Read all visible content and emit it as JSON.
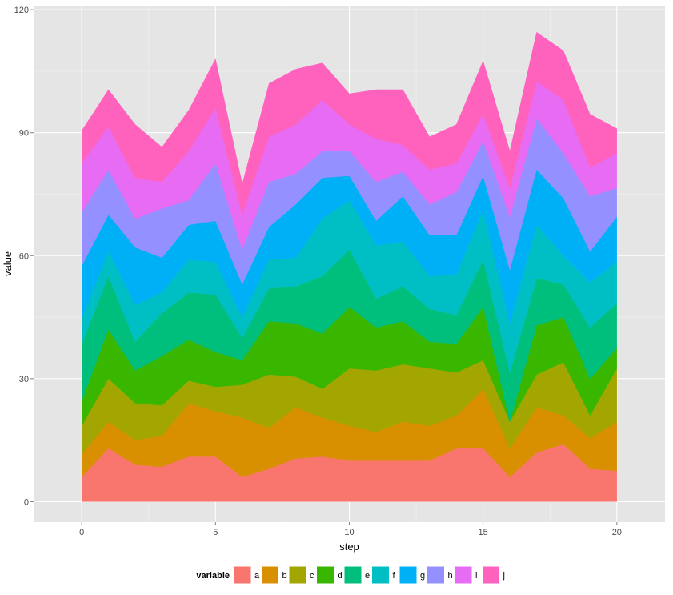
{
  "chart_data": {
    "type": "area",
    "stacked": true,
    "title": "",
    "xlabel": "step",
    "ylabel": "value",
    "xlim": [
      -1.8,
      21.8
    ],
    "ylim": [
      -5,
      121
    ],
    "x_ticks": [
      0,
      5,
      10,
      15,
      20
    ],
    "x_tick_labels": [
      "0",
      "5",
      "10",
      "15",
      "20"
    ],
    "y_ticks": [
      0,
      30,
      60,
      90,
      120
    ],
    "y_tick_labels": [
      "0",
      "30",
      "60",
      "90",
      "120"
    ],
    "grid": true,
    "legend": {
      "title": "variable",
      "position": "bottom"
    },
    "x": [
      0,
      1,
      2,
      3,
      4,
      5,
      6,
      7,
      8,
      9,
      10,
      11,
      12,
      13,
      14,
      15,
      16,
      17,
      18,
      19,
      20
    ],
    "series": [
      {
        "name": "a",
        "color": "#F8766D",
        "values": [
          6,
          13,
          9,
          8.5,
          11,
          11,
          6,
          8,
          10.5,
          11,
          10,
          10,
          10,
          10,
          13,
          13,
          6,
          12,
          14,
          8,
          7.5
        ]
      },
      {
        "name": "b",
        "color": "#D89000",
        "values": [
          5.5,
          6.5,
          6,
          7.5,
          13,
          11,
          14.5,
          10,
          12.5,
          9.5,
          8.5,
          7,
          9.5,
          8.5,
          8,
          14.5,
          7,
          11,
          7,
          7.5,
          12
        ]
      },
      {
        "name": "c",
        "color": "#A3A500",
        "values": [
          7,
          10.5,
          9,
          7.5,
          5.5,
          6,
          8,
          13,
          7.5,
          7,
          14,
          15,
          14,
          14,
          10.5,
          7,
          6.5,
          8,
          13,
          5.5,
          13
        ]
      },
      {
        "name": "d",
        "color": "#39B600",
        "values": [
          6,
          12,
          8,
          12,
          10,
          8.5,
          6,
          13,
          13,
          13.5,
          15,
          10.5,
          10.5,
          6.5,
          7,
          13,
          0,
          12,
          11,
          9,
          5
        ]
      },
      {
        "name": "e",
        "color": "#00BF7D",
        "values": [
          14,
          13,
          7,
          10.5,
          11.5,
          14,
          5.5,
          8,
          9,
          14,
          14,
          7,
          8.5,
          8,
          7,
          11.5,
          12,
          11.5,
          8,
          12.5,
          11
        ]
      },
      {
        "name": "f",
        "color": "#00BFC4",
        "values": [
          6,
          6,
          9,
          5,
          8,
          8,
          5,
          7,
          7,
          14,
          12,
          13,
          11,
          8,
          10,
          12,
          12,
          13,
          7,
          11,
          10
        ]
      },
      {
        "name": "g",
        "color": "#00B0F6",
        "values": [
          13,
          9,
          14,
          8.5,
          8.5,
          10,
          8,
          8,
          13,
          10,
          6,
          6,
          11,
          10,
          9.5,
          8.5,
          13,
          13.5,
          14,
          7.5,
          11
        ]
      },
      {
        "name": "h",
        "color": "#9590FF",
        "values": [
          13,
          11,
          7,
          12,
          6,
          14,
          8.5,
          11,
          7.5,
          6.5,
          6,
          9.5,
          6,
          7.5,
          10.5,
          8.5,
          13,
          12.5,
          11,
          13.5,
          7
        ]
      },
      {
        "name": "i",
        "color": "#E76BF3",
        "values": [
          12,
          10.5,
          10,
          6.5,
          12,
          13.5,
          8.5,
          11,
          12,
          12.5,
          6.5,
          10.5,
          6.5,
          8.5,
          7,
          6.5,
          7,
          9,
          13,
          7,
          8.5
        ]
      },
      {
        "name": "j",
        "color": "#FF62BC",
        "values": [
          8,
          9,
          13,
          8.5,
          10,
          12,
          7.5,
          13,
          13.5,
          9,
          7.5,
          12,
          13.5,
          8,
          9.5,
          13,
          9,
          12,
          12,
          13,
          6
        ]
      }
    ]
  }
}
